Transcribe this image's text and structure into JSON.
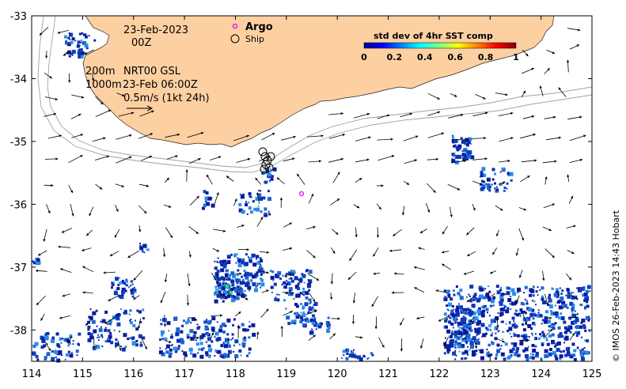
{
  "map": {
    "date_label": "23-Feb-2023",
    "time_label": "00Z",
    "depth_label_1": "200m",
    "depth_label_2": "1000m",
    "product_label": "NRT00 GSL",
    "product_time_label": "23-Feb 06:00Z",
    "scale_label": "0.5m/s (1kt 24h)",
    "argo_label": "Argo",
    "ship_label": "Ship",
    "credit": "© IMOS 26-Feb-2023 14:43 Hobart",
    "colorbar": {
      "title": "std dev of 4hr SST comp",
      "ticks": [
        "0",
        "0.2",
        "0.4",
        "0.6",
        "0.8",
        "1"
      ]
    },
    "axes": {
      "xlim": [
        114,
        125
      ],
      "ylim": [
        -38.5,
        -33
      ],
      "x_ticks": [
        "114",
        "115",
        "116",
        "117",
        "118",
        "119",
        "120",
        "121",
        "122",
        "123",
        "124",
        "125"
      ],
      "y_ticks": [
        "-33",
        "-34",
        "-35",
        "-36",
        "-37",
        "-38"
      ]
    },
    "colors": {
      "land": "#fdd0a2",
      "argo_marker": "#ee00ee",
      "sst_low": "#0a1a9e",
      "sst_mid": "#1e64d2",
      "isobath": "#a0a0a0"
    }
  }
}
